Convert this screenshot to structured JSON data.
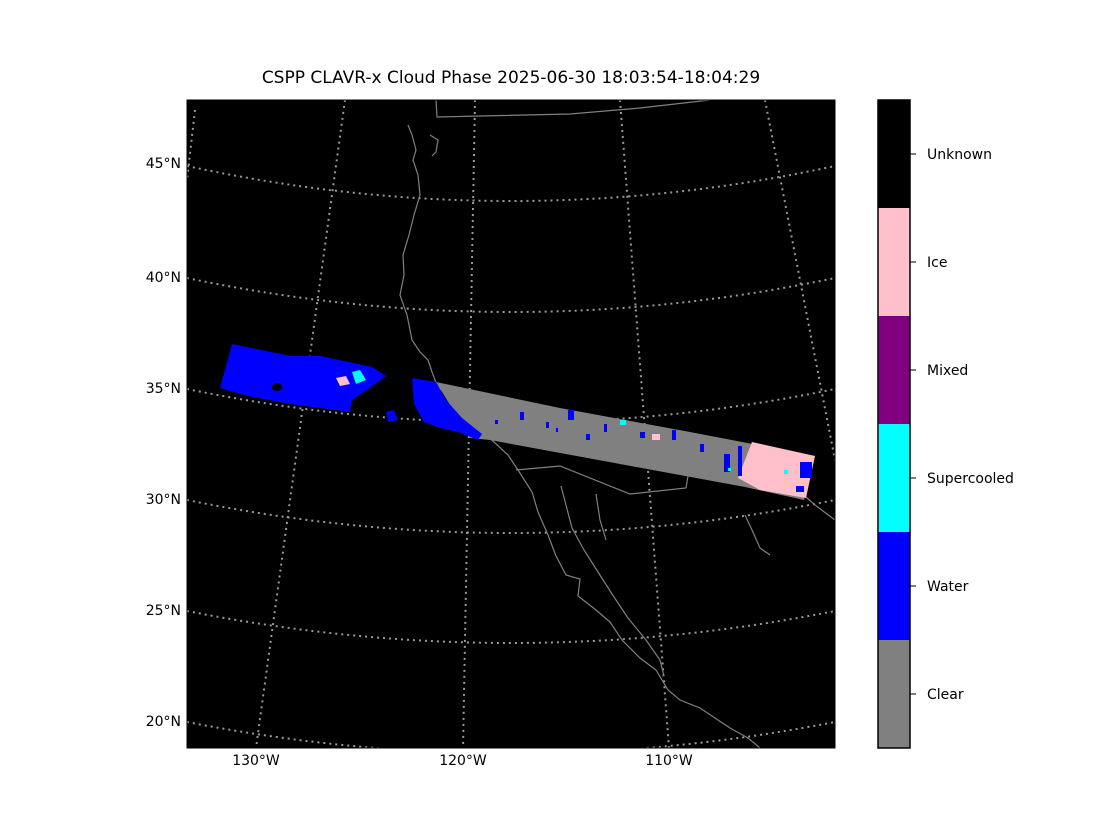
{
  "title": "CSPP CLAVR-x Cloud Phase 2025-06-30 18:03:54-18:04:29",
  "map": {
    "background_color": "#000000",
    "coastline_color": "#808080",
    "graticule_color": "#9a9a9a",
    "lat_labels": [
      "45°N",
      "40°N",
      "35°N",
      "30°N",
      "25°N",
      "20°N"
    ],
    "lon_labels": [
      "130°W",
      "120°W",
      "110°W"
    ]
  },
  "colorbar": {
    "categories": [
      {
        "label": "Unknown",
        "color": "#000000"
      },
      {
        "label": "Ice",
        "color": "#ffc0cb"
      },
      {
        "label": "Mixed",
        "color": "#800080"
      },
      {
        "label": "Supercooled",
        "color": "#00ffff"
      },
      {
        "label": "Water",
        "color": "#0000ff"
      },
      {
        "label": "Clear",
        "color": "#808080"
      }
    ]
  }
}
